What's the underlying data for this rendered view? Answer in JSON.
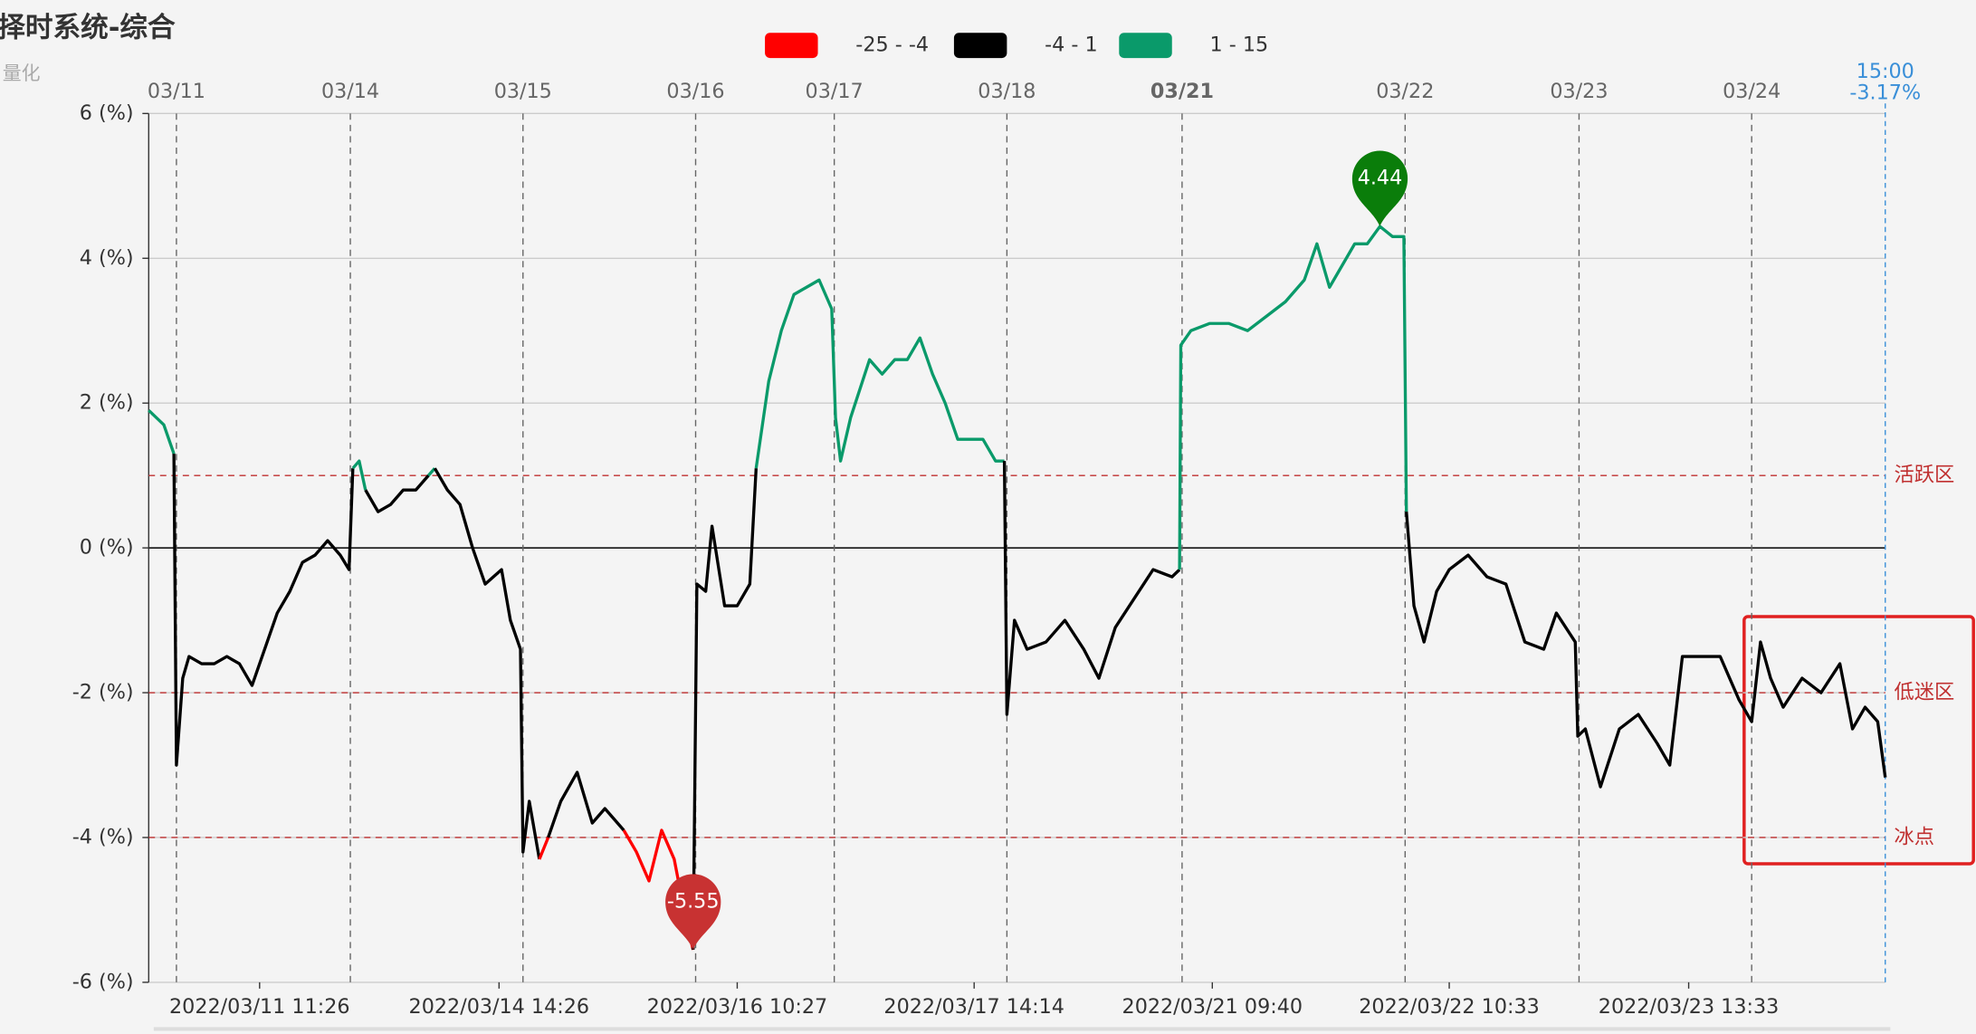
{
  "chart_data": {
    "type": "line",
    "title": "择时系统-综合",
    "subtitle": "量化",
    "xlim": [
      0,
      1378
    ],
    "xticks": [
      {
        "value": 22,
        "label": "03/11"
      },
      {
        "value": 160,
        "label": "03/14"
      },
      {
        "value": 297,
        "label": "03/15"
      },
      {
        "value": 434,
        "label": "03/16"
      },
      {
        "value": 544,
        "label": "03/17"
      },
      {
        "value": 681,
        "label": "03/18"
      },
      {
        "value": 820,
        "label": "03/21"
      },
      {
        "value": 997,
        "label": "03/22"
      },
      {
        "value": 1135,
        "label": "03/23"
      },
      {
        "value": 1272,
        "label": "03/24"
      }
    ],
    "time_ticks": [
      {
        "value": 88,
        "label": "2022/03/11 11:26"
      },
      {
        "value": 278,
        "label": "2022/03/14 14:26"
      },
      {
        "value": 467,
        "label": "2022/03/16 10:27"
      },
      {
        "value": 655,
        "label": "2022/03/17 14:14"
      },
      {
        "value": 844,
        "label": "2022/03/21 09:40"
      },
      {
        "value": 1032,
        "label": "2022/03/22 10:33"
      },
      {
        "value": 1222,
        "label": "2022/03/23 13:33"
      }
    ],
    "ylim": [
      -6,
      6
    ],
    "yticks": [
      {
        "value": 6,
        "label": "6 (%)"
      },
      {
        "value": 4,
        "label": "4 (%)"
      },
      {
        "value": 2,
        "label": "2 (%)"
      },
      {
        "value": 0,
        "label": "0 (%)"
      },
      {
        "value": -2,
        "label": "-2 (%)"
      },
      {
        "value": -4,
        "label": "-4 (%)"
      },
      {
        "value": -6,
        "label": "-6 (%)"
      }
    ],
    "grid": true,
    "pieces": [
      {
        "label": "-25 - -4",
        "min": -25,
        "max": -4,
        "color": "#ff0000"
      },
      {
        "label": "-4 - 1",
        "min": -4,
        "max": 1,
        "color": "#000000"
      },
      {
        "label": "1 - 15",
        "min": 1,
        "max": 15,
        "color": "#0a9a6a"
      }
    ],
    "mark_lines": [
      {
        "value": 1,
        "label": "活跃区"
      },
      {
        "value": -2,
        "label": "低迷区"
      },
      {
        "value": -4,
        "label": "冰点"
      }
    ],
    "end_time": "15:00",
    "end_value_label": "-3.17%",
    "x": [
      0,
      12,
      20,
      22,
      27,
      32,
      42,
      52,
      62,
      72,
      82,
      92,
      102,
      112,
      122,
      132,
      142,
      152,
      159,
      162,
      167,
      172,
      182,
      192,
      202,
      212,
      222,
      227,
      237,
      247,
      257,
      267,
      280,
      287,
      295,
      297,
      302,
      310,
      317,
      327,
      340,
      352,
      362,
      377,
      387,
      397,
      407,
      417,
      427,
      432,
      435,
      442,
      447,
      457,
      467,
      477,
      482,
      492,
      502,
      512,
      522,
      532,
      542,
      545,
      549,
      557,
      572,
      582,
      592,
      602,
      612,
      622,
      632,
      642,
      652,
      662,
      672,
      679,
      681,
      687,
      697,
      712,
      727,
      742,
      754,
      767,
      782,
      797,
      812,
      818,
      819,
      827,
      842,
      857,
      872,
      887,
      902,
      917,
      927,
      937,
      947,
      957,
      967,
      977,
      987,
      996,
      998,
      1004,
      1012,
      1022,
      1032,
      1047,
      1062,
      1077,
      1092,
      1107,
      1117,
      1132,
      1134,
      1140,
      1152,
      1167,
      1182,
      1197,
      1207,
      1217,
      1232,
      1247,
      1262,
      1272,
      1279,
      1287,
      1297,
      1312,
      1327,
      1342,
      1352,
      1362,
      1372,
      1378
    ],
    "values": [
      1.9,
      1.7,
      1.3,
      -3.0,
      -1.8,
      -1.5,
      -1.6,
      -1.6,
      -1.5,
      -1.6,
      -1.9,
      -1.4,
      -0.9,
      -0.6,
      -0.2,
      -0.1,
      0.1,
      -0.1,
      -0.3,
      1.1,
      1.2,
      0.8,
      0.5,
      0.6,
      0.8,
      0.8,
      1.0,
      1.1,
      0.8,
      0.6,
      0,
      -0.5,
      -0.3,
      -1.0,
      -1.4,
      -4.2,
      -3.5,
      -4.3,
      -4.0,
      -3.5,
      -3.1,
      -3.8,
      -3.6,
      -3.9,
      -4.2,
      -4.6,
      -3.9,
      -4.3,
      -5.2,
      -5.55,
      -0.5,
      -0.6,
      0.3,
      -0.8,
      -0.8,
      -0.5,
      1.1,
      2.3,
      3.0,
      3.5,
      3.6,
      3.7,
      3.3,
      1.8,
      1.2,
      1.8,
      2.6,
      2.4,
      2.6,
      2.6,
      2.9,
      2.4,
      2.0,
      1.5,
      1.5,
      1.5,
      1.2,
      1.2,
      -2.3,
      -1.0,
      -1.4,
      -1.3,
      -1.0,
      -1.4,
      -1.8,
      -1.1,
      -0.7,
      -0.3,
      -0.4,
      -0.3,
      2.8,
      3.0,
      3.1,
      3.1,
      3.0,
      3.2,
      3.4,
      3.7,
      4.2,
      3.6,
      3.9,
      4.2,
      4.2,
      4.44,
      4.3,
      4.3,
      0.5,
      -0.8,
      -1.3,
      -0.6,
      -0.3,
      -0.1,
      -0.4,
      -0.5,
      -1.3,
      -1.4,
      -0.9,
      -1.3,
      -2.6,
      -2.5,
      -3.3,
      -2.5,
      -2.3,
      -2.7,
      -3.0,
      -1.5,
      -1.5,
      -1.5,
      -2.1,
      -2.4,
      -1.3,
      -1.8,
      -2.2,
      -1.8,
      -2.0,
      -1.6,
      -2.5,
      -2.2,
      -2.4,
      -3.17
    ]
  }
}
